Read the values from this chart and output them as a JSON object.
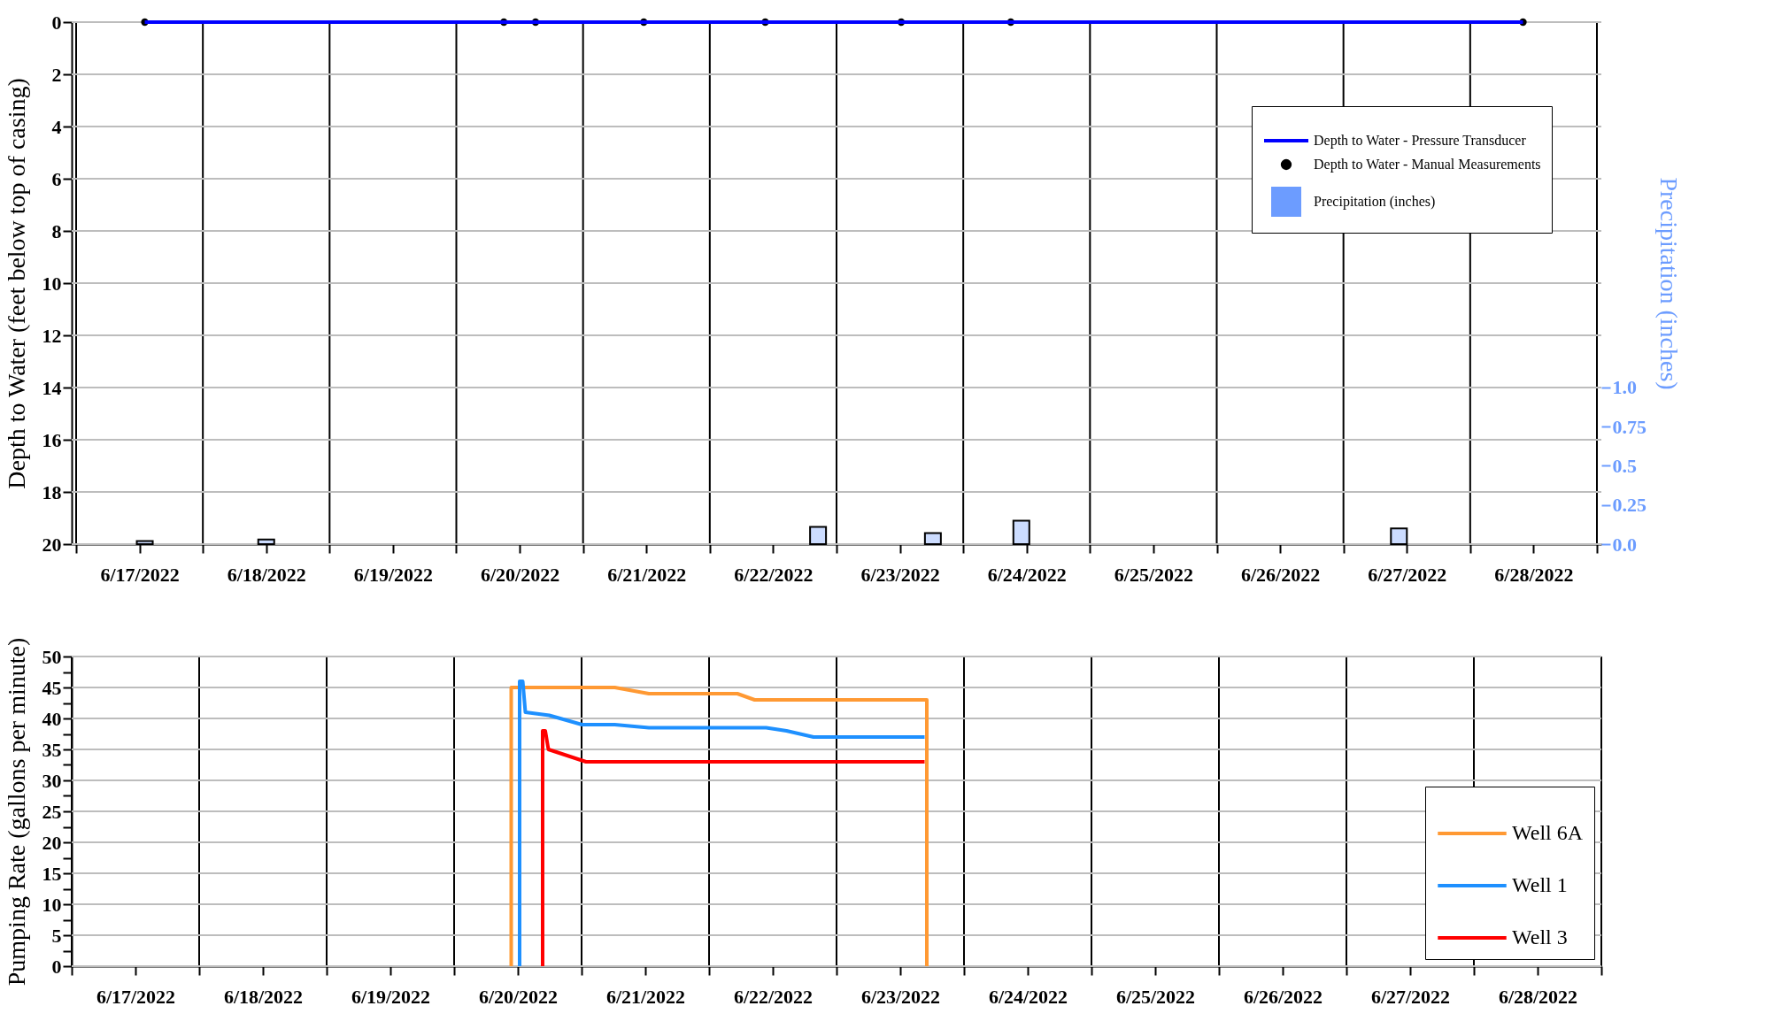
{
  "chart_data": [
    {
      "type": "line",
      "ylabel": "Depth to Water (feet below top of casing)",
      "y2label": "Precipitation (inches)",
      "xlim": [
        "2022-06-17T00:00",
        "2022-06-29T00:00"
      ],
      "xticks": [
        {
          "value": "2022-06-17T00:00",
          "label": null
        },
        {
          "value": "2022-06-18T00:00",
          "label": null
        },
        {
          "value": "2022-06-19T00:00",
          "label": null
        },
        {
          "value": "2022-06-20T00:00",
          "label": null
        },
        {
          "value": "2022-06-21T00:00",
          "label": null
        },
        {
          "value": "2022-06-22T00:00",
          "label": null
        },
        {
          "value": "2022-06-23T00:00",
          "label": null
        },
        {
          "value": "2022-06-24T00:00",
          "label": null
        },
        {
          "value": "2022-06-25T00:00",
          "label": null
        },
        {
          "value": "2022-06-26T00:00",
          "label": null
        },
        {
          "value": "2022-06-27T00:00",
          "label": null
        },
        {
          "value": "2022-06-28T00:00",
          "label": null
        },
        {
          "value": "2022-06-29T00:00",
          "label": null
        },
        {
          "value": "2022-06-17T12:00",
          "label": "6/17/2022"
        },
        {
          "value": "2022-06-18T12:00",
          "label": "6/18/2022"
        },
        {
          "value": "2022-06-19T12:00",
          "label": "6/19/2022"
        },
        {
          "value": "2022-06-20T12:00",
          "label": "6/20/2022"
        },
        {
          "value": "2022-06-21T12:00",
          "label": "6/21/2022"
        },
        {
          "value": "2022-06-22T12:00",
          "label": "6/22/2022"
        },
        {
          "value": "2022-06-23T12:00",
          "label": "6/23/2022"
        },
        {
          "value": "2022-06-24T12:00",
          "label": "6/24/2022"
        },
        {
          "value": "2022-06-25T12:00",
          "label": "6/25/2022"
        },
        {
          "value": "2022-06-26T12:00",
          "label": "6/26/2022"
        },
        {
          "value": "2022-06-27T12:00",
          "label": "6/27/2022"
        },
        {
          "value": "2022-06-28T12:00",
          "label": "6/28/2022"
        }
      ],
      "ylim": [
        20,
        0
      ],
      "yticks": [
        0,
        2,
        4,
        6,
        8,
        10,
        12,
        14,
        16,
        18,
        20
      ],
      "y2lim": [
        0,
        3.333
      ],
      "y2ticks": [
        {
          "value": 0,
          "label": "0.0"
        },
        0.25,
        0.5,
        0.75,
        {
          "value": 1,
          "label": "1.0"
        }
      ],
      "grid": true,
      "legend": "top right",
      "series": [
        {
          "name": "Depth to Water - Pressure Transducer",
          "type": "line",
          "color": "#0000ff",
          "marker": "none",
          "x": [
            "2022-06-17T13:00",
            "2022-06-28T10:00"
          ],
          "values": [
            0,
            0
          ]
        },
        {
          "name": "Depth to Water - Manual Measurements",
          "type": "scatter",
          "color": "#000000",
          "marker": "circle",
          "x": [
            "2022-06-17T13:00",
            "2022-06-20T09:00",
            "2022-06-20T15:00",
            "2022-06-21T11:30",
            "2022-06-22T10:30",
            "2022-06-23T12:15",
            "2022-06-24T09:00",
            "2022-06-28T10:00"
          ],
          "values": [
            0,
            0,
            0,
            0,
            0,
            0,
            0,
            0
          ]
        },
        {
          "name": "Precipitation (inches)",
          "type": "bar",
          "axis": "y2",
          "color": "#6c9cff",
          "x": [
            "2022-06-17T13:00",
            "2022-06-18T12:00",
            "2022-06-22T20:30",
            "2022-06-23T18:15",
            "2022-06-24T11:00",
            "2022-06-27T10:30"
          ],
          "values": [
            0.02,
            0.03,
            0.11,
            0.07,
            0.15,
            0.1
          ]
        }
      ]
    },
    {
      "type": "line",
      "ylabel": "Pumping Rate (gallons per minute)",
      "xlim": [
        "2022-06-17T00:00",
        "2022-06-29T00:00"
      ],
      "xticks": [
        {
          "value": "2022-06-17T00:00",
          "label": null
        },
        {
          "value": "2022-06-18T00:00",
          "label": null
        },
        {
          "value": "2022-06-19T00:00",
          "label": null
        },
        {
          "value": "2022-06-20T00:00",
          "label": null
        },
        {
          "value": "2022-06-21T00:00",
          "label": null
        },
        {
          "value": "2022-06-22T00:00",
          "label": null
        },
        {
          "value": "2022-06-23T00:00",
          "label": null
        },
        {
          "value": "2022-06-24T00:00",
          "label": null
        },
        {
          "value": "2022-06-25T00:00",
          "label": null
        },
        {
          "value": "2022-06-26T00:00",
          "label": null
        },
        {
          "value": "2022-06-27T00:00",
          "label": null
        },
        {
          "value": "2022-06-28T00:00",
          "label": null
        },
        {
          "value": "2022-06-29T00:00",
          "label": null
        },
        {
          "value": "2022-06-17T12:00",
          "label": "6/17/2022"
        },
        {
          "value": "2022-06-18T12:00",
          "label": "6/18/2022"
        },
        {
          "value": "2022-06-19T12:00",
          "label": "6/19/2022"
        },
        {
          "value": "2022-06-20T12:00",
          "label": "6/20/2022"
        },
        {
          "value": "2022-06-21T12:00",
          "label": "6/21/2022"
        },
        {
          "value": "2022-06-22T12:00",
          "label": "6/22/2022"
        },
        {
          "value": "2022-06-23T12:00",
          "label": "6/23/2022"
        },
        {
          "value": "2022-06-24T12:00",
          "label": "6/24/2022"
        },
        {
          "value": "2022-06-25T12:00",
          "label": "6/25/2022"
        },
        {
          "value": "2022-06-26T12:00",
          "label": "6/26/2022"
        },
        {
          "value": "2022-06-27T12:00",
          "label": "6/27/2022"
        },
        {
          "value": "2022-06-28T12:00",
          "label": "6/28/2022"
        }
      ],
      "ylim": [
        0,
        50
      ],
      "yticks": [
        0,
        {
          "value": 2.5,
          "label": null
        },
        5,
        {
          "value": 7.5,
          "label": null
        },
        10,
        {
          "value": 12.5,
          "label": null
        },
        15,
        {
          "value": 17.5,
          "label": null
        },
        20,
        {
          "value": 22.5,
          "label": null
        },
        25,
        {
          "value": 27.5,
          "label": null
        },
        30,
        {
          "value": 32.5,
          "label": null
        },
        35,
        {
          "value": 37.5,
          "label": null
        },
        40,
        {
          "value": 42.5,
          "label": null
        },
        45,
        {
          "value": 47.5,
          "label": null
        },
        50
      ],
      "grid": true,
      "legend": "bottom right",
      "marker": "none",
      "line_style": "solid",
      "series": [
        {
          "name": "Well 6A",
          "color": "#ff9933",
          "x": [
            "2022-06-20T10:45",
            "2022-06-20T10:45",
            "2022-06-21T06:15",
            "2022-06-21T12:40",
            "2022-06-22T05:20",
            "2022-06-22T08:35",
            "2022-06-23T17:00",
            "2022-06-23T17:00"
          ],
          "values": [
            0,
            45,
            45,
            44,
            44,
            43,
            43,
            0
          ]
        },
        {
          "name": "Well 1",
          "color": "#1e90ff",
          "x": [
            "2022-06-20T12:20",
            "2022-06-20T12:20",
            "2022-06-20T12:55",
            "2022-06-20T13:25",
            "2022-06-20T17:55",
            "2022-06-21T00:05",
            "2022-06-21T06:15",
            "2022-06-21T12:40",
            "2022-06-22T10:45",
            "2022-06-22T14:35",
            "2022-06-22T19:40",
            "2022-06-23T16:35"
          ],
          "values": [
            0,
            46,
            46,
            41,
            40.5,
            39,
            39,
            38.5,
            38.5,
            38,
            37,
            37
          ]
        },
        {
          "name": "Well 3",
          "color": "#ff0000",
          "x": [
            "2022-06-20T16:40",
            "2022-06-20T16:40",
            "2022-06-20T17:10",
            "2022-06-20T17:45",
            "2022-06-21T00:50",
            "2022-06-23T16:35"
          ],
          "values": [
            0,
            38,
            38,
            35,
            33,
            33
          ]
        }
      ]
    }
  ]
}
